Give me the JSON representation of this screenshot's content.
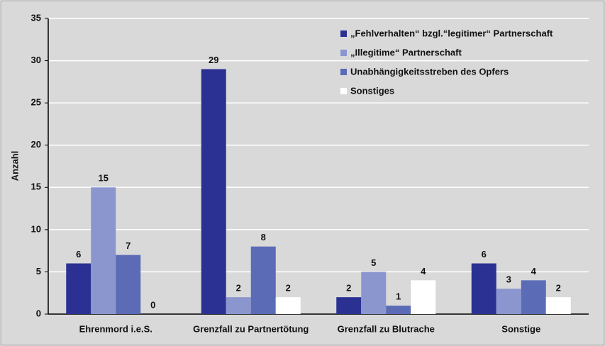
{
  "chart_data": {
    "type": "bar",
    "y_label": "Anzahl",
    "categories": [
      "Ehrenmord i.e.S.",
      "Grenzfall zu Partnertötung",
      "Grenzfall zu Blutrache",
      "Sonstige"
    ],
    "series": [
      {
        "name": "„Fehlverhalten“ bzgl.“legitimer“ Partnerschaft",
        "color": "#2b3192",
        "values": [
          6,
          29,
          2,
          6
        ]
      },
      {
        "name": "„Illegitime“ Partnerschaft",
        "color": "#8b96cf",
        "values": [
          15,
          2,
          5,
          3
        ]
      },
      {
        "name": "Unabhängigkeitsstreben des Opfers",
        "color": "#5b6bb6",
        "values": [
          7,
          8,
          1,
          4
        ]
      },
      {
        "name": "Sonstiges",
        "color": "#ffffff",
        "values": [
          0,
          2,
          4,
          2
        ]
      }
    ],
    "ylim": [
      0,
      35
    ],
    "yticks": [
      0,
      5,
      10,
      15,
      20,
      25,
      30,
      35
    ],
    "grid": true,
    "legend": "top-right"
  }
}
